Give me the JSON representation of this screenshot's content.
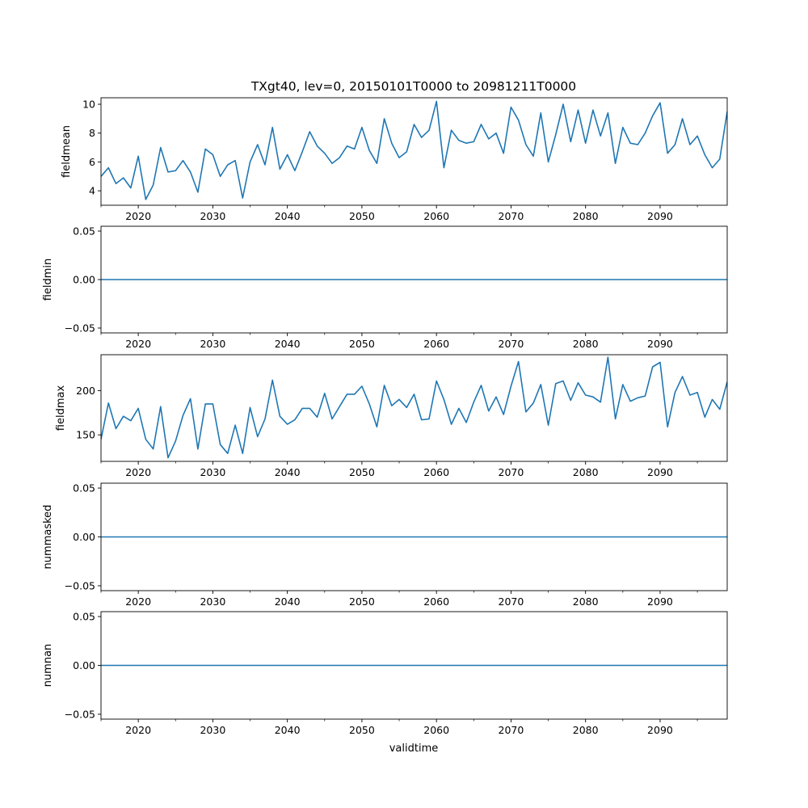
{
  "chart_data": {
    "type": "line",
    "title": "TXgt40, lev=0, 20150101T0000 to 20981211T0000",
    "xlabel": "validtime",
    "xlim": [
      2015,
      2099
    ],
    "x_ticks": [
      2020,
      2030,
      2040,
      2050,
      2060,
      2070,
      2080,
      2090
    ],
    "x_minor_ticks": [
      2015,
      2025,
      2035,
      2045,
      2055,
      2065,
      2075,
      2085,
      2095
    ],
    "x_start": 2015,
    "x_step": 1,
    "line_color": "#1f77b4",
    "grid": false,
    "panels": [
      {
        "ylabel": "fieldmean",
        "ylim": [
          3.0,
          10.45
        ],
        "y_ticks": [
          4,
          6,
          8,
          10
        ],
        "y_tick_labels": [
          "4",
          "6",
          "8",
          "10"
        ],
        "values": [
          5.0,
          5.6,
          4.5,
          4.9,
          4.2,
          6.4,
          3.4,
          4.4,
          7.0,
          5.3,
          5.4,
          6.1,
          5.3,
          3.9,
          6.9,
          6.5,
          5.0,
          5.8,
          6.1,
          3.5,
          6.0,
          7.2,
          5.8,
          8.4,
          5.5,
          6.5,
          5.4,
          6.7,
          8.1,
          7.1,
          6.6,
          5.9,
          6.3,
          7.1,
          6.9,
          8.4,
          6.8,
          5.9,
          9.0,
          7.3,
          6.3,
          6.7,
          8.6,
          7.7,
          8.2,
          10.2,
          5.6,
          8.2,
          7.5,
          7.3,
          7.4,
          8.6,
          7.6,
          8.0,
          6.6,
          9.8,
          8.9,
          7.2,
          6.4,
          9.4,
          6.0,
          7.9,
          10.0,
          7.4,
          9.6,
          7.3,
          9.6,
          7.8,
          9.4,
          5.9,
          8.4,
          7.3,
          7.2,
          8.0,
          9.2,
          10.1,
          6.6,
          7.2,
          9.0,
          7.2,
          7.8,
          6.5,
          5.6,
          6.2,
          9.5
        ]
      },
      {
        "ylabel": "fieldmin",
        "ylim": [
          -0.055,
          0.055
        ],
        "y_ticks": [
          -0.05,
          0.0,
          0.05
        ],
        "y_tick_labels": [
          "−0.05",
          "0.00",
          "0.05"
        ],
        "constant": 0
      },
      {
        "ylabel": "fieldmax",
        "ylim": [
          120,
          240.7
        ],
        "y_ticks": [
          150,
          200
        ],
        "y_tick_labels": [
          "150",
          "200"
        ],
        "values": [
          145,
          186,
          157,
          171,
          166,
          180,
          145,
          134,
          182,
          124,
          143,
          172,
          191,
          134,
          185,
          185,
          139,
          129,
          161,
          129,
          181,
          148,
          168,
          212,
          171,
          162,
          167,
          180,
          180,
          170,
          197,
          168,
          182,
          196,
          196,
          205,
          185,
          159,
          206,
          183,
          190,
          181,
          196,
          167,
          168,
          211,
          190,
          162,
          180,
          164,
          187,
          206,
          177,
          193,
          173,
          205,
          233,
          176,
          186,
          207,
          161,
          208,
          211,
          189,
          209,
          195,
          193,
          187,
          238,
          168,
          207,
          188,
          192,
          194,
          227,
          232,
          159,
          198,
          216,
          195,
          198,
          170,
          190,
          179,
          210
        ]
      },
      {
        "ylabel": "nummasked",
        "ylim": [
          -0.055,
          0.055
        ],
        "y_ticks": [
          -0.05,
          0.0,
          0.05
        ],
        "y_tick_labels": [
          "−0.05",
          "0.00",
          "0.05"
        ],
        "constant": 0
      },
      {
        "ylabel": "numnan",
        "ylim": [
          -0.055,
          0.055
        ],
        "y_ticks": [
          -0.05,
          0.0,
          0.05
        ],
        "y_tick_labels": [
          "−0.05",
          "0.00",
          "0.05"
        ],
        "constant": 0
      }
    ]
  }
}
